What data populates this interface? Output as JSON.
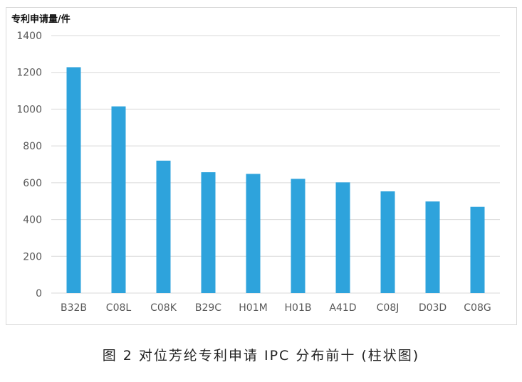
{
  "chart_data": {
    "type": "bar",
    "ylabel": "专利申请量/件",
    "xlabel": "",
    "categories": [
      "B32B",
      "C08L",
      "C08K",
      "B29C",
      "H01M",
      "H01B",
      "A41D",
      "C08J",
      "D03D",
      "C08G"
    ],
    "values": [
      1228,
      1015,
      720,
      657,
      648,
      621,
      602,
      553,
      498,
      469
    ],
    "ylim": [
      0,
      1400
    ],
    "yticks": [
      "0",
      "200",
      "400",
      "600",
      "800",
      "1000",
      "1200",
      "1400"
    ],
    "grid": true,
    "bar_color": "#2ea3dc",
    "grid_color": "#d9d9d9"
  },
  "caption": "图 2 对位芳纶专利申请 IPC 分布前十 (柱状图)"
}
